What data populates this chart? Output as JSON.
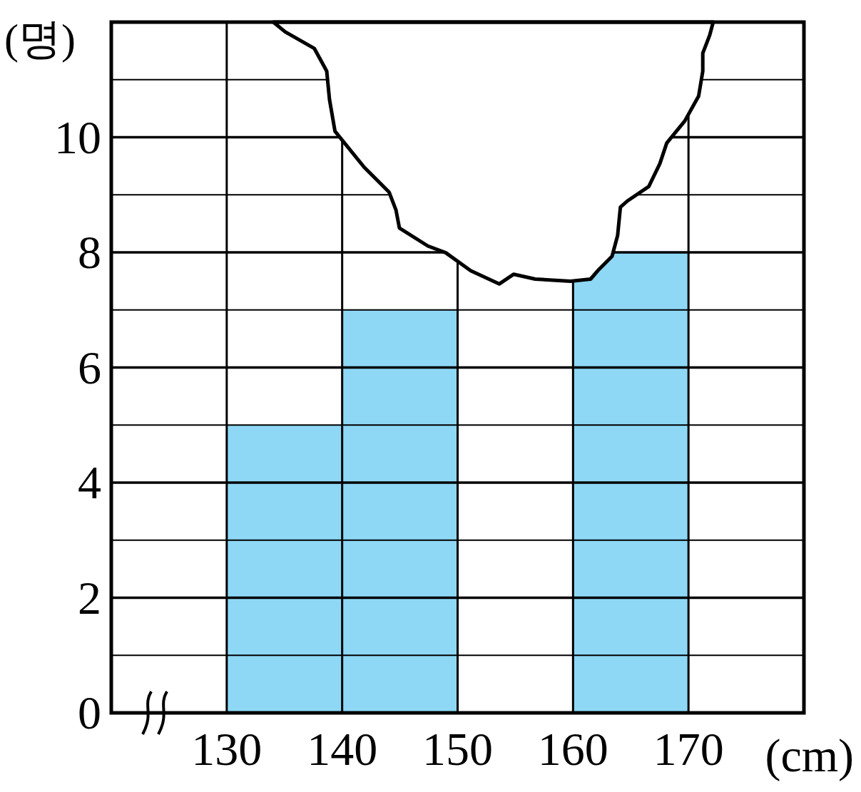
{
  "chart_data": {
    "type": "histogram",
    "xlabel": "(cm)",
    "ylabel": "(명)",
    "bins": [
      130,
      140,
      150,
      160,
      170
    ],
    "values": [
      5,
      7,
      null,
      8
    ],
    "color": "#8ed8f6",
    "xlim": [
      120,
      180
    ],
    "xticks": [
      130,
      140,
      150,
      160,
      170
    ],
    "ylim": [
      0,
      12
    ],
    "yticks": [
      0,
      {
        "value": 1,
        "label": null
      },
      2,
      {
        "value": 3,
        "label": null
      },
      4,
      {
        "value": 5,
        "label": null
      },
      6,
      {
        "value": 7,
        "label": null
      },
      8,
      {
        "value": 9,
        "label": null
      },
      10,
      {
        "value": 11,
        "label": null
      },
      {
        "value": 12,
        "label": null
      }
    ],
    "grid": true
  }
}
